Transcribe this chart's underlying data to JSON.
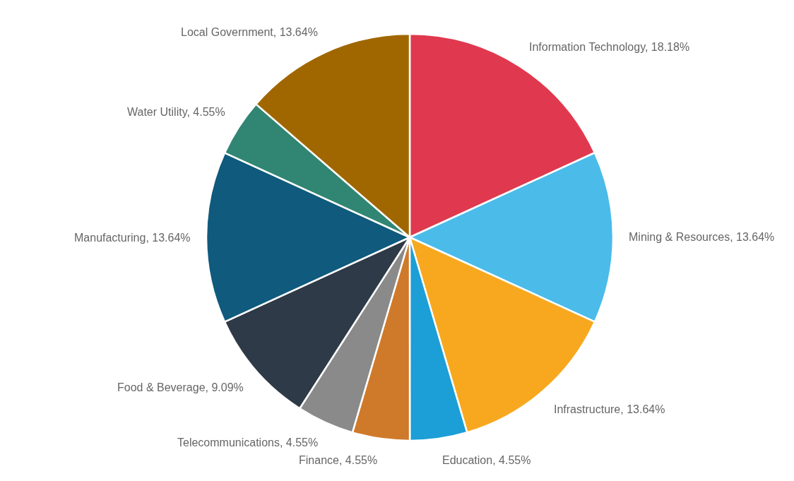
{
  "chart_data": {
    "type": "pie",
    "categories": [
      "Information Technology",
      "Mining & Resources",
      "Infrastructure",
      "Education",
      "Finance",
      "Telecommunications",
      "Food & Beverage",
      "Manufacturing",
      "Water Utility",
      "Local Government"
    ],
    "values": [
      18.18,
      13.64,
      13.64,
      4.55,
      4.55,
      4.55,
      9.09,
      13.64,
      4.55,
      13.64
    ],
    "value_labels": [
      "18.18%",
      "13.64%",
      "13.64%",
      "4.55%",
      "4.55%",
      "4.55%",
      "9.09%",
      "13.64%",
      "4.55%",
      "13.64%"
    ],
    "colors": [
      "#e0394f",
      "#4bbbe9",
      "#f8a81e",
      "#1c9ed6",
      "#cf7a2a",
      "#8a8a8a",
      "#2e3a47",
      "#0f5a7d",
      "#318673",
      "#a06700"
    ],
    "legend": false
  }
}
